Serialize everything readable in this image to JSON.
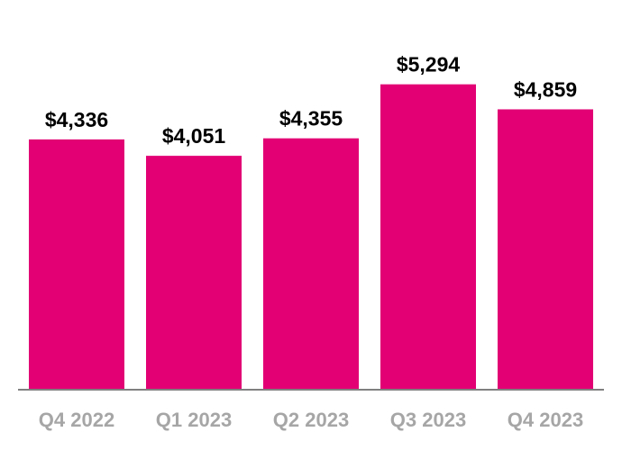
{
  "chart_data": {
    "type": "bar",
    "title": "",
    "xlabel": "",
    "ylabel": "",
    "categories": [
      "Q4 2022",
      "Q1 2023",
      "Q2 2023",
      "Q3 2023",
      "Q4 2023"
    ],
    "values": [
      4336,
      4051,
      4355,
      5294,
      4859
    ],
    "data_labels": [
      "$4,336",
      "$4,051",
      "$4,355",
      "$5,294",
      "$4,859"
    ],
    "ylim": [
      0,
      6760
    ],
    "grid": false,
    "legend": "none",
    "colors": {
      "bar": "#E20074",
      "axis": "#808080",
      "category_label": "#A6A6A6",
      "value_label": "#000000"
    }
  }
}
